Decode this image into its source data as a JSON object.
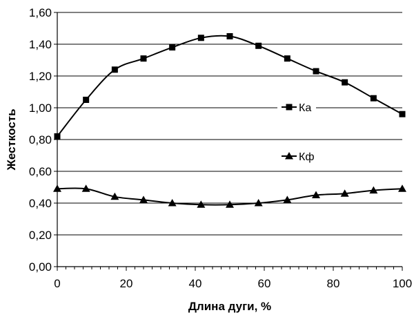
{
  "chart_data": {
    "type": "line",
    "xlabel": "Длина дуги, %",
    "ylabel": "Жесткость",
    "xlim": [
      0,
      100
    ],
    "ylim": [
      0,
      1.6
    ],
    "x_ticks": [
      "0",
      "20",
      "40",
      "60",
      "80",
      "100"
    ],
    "y_ticks": [
      "0,00",
      "0,20",
      "0,40",
      "0,60",
      "0,80",
      "1,00",
      "1,20",
      "1,40",
      "1,60"
    ],
    "grid": "horizontal",
    "legend": "inside, right",
    "series": [
      {
        "name": "Ка",
        "marker": "square",
        "color": "#000000",
        "x": [
          0,
          8.33,
          16.67,
          25,
          33.33,
          41.67,
          50,
          58.33,
          66.67,
          75,
          83.33,
          91.67,
          100
        ],
        "values": [
          0.82,
          1.05,
          1.24,
          1.31,
          1.38,
          1.44,
          1.45,
          1.39,
          1.31,
          1.23,
          1.16,
          1.06,
          0.96
        ]
      },
      {
        "name": "Кф",
        "marker": "triangle",
        "color": "#000000",
        "x": [
          0,
          8.33,
          16.67,
          25,
          33.33,
          41.67,
          50,
          58.33,
          66.67,
          75,
          83.33,
          91.67,
          100
        ],
        "values": [
          0.49,
          0.49,
          0.44,
          0.42,
          0.4,
          0.39,
          0.39,
          0.4,
          0.42,
          0.45,
          0.46,
          0.48,
          0.49
        ]
      }
    ]
  }
}
